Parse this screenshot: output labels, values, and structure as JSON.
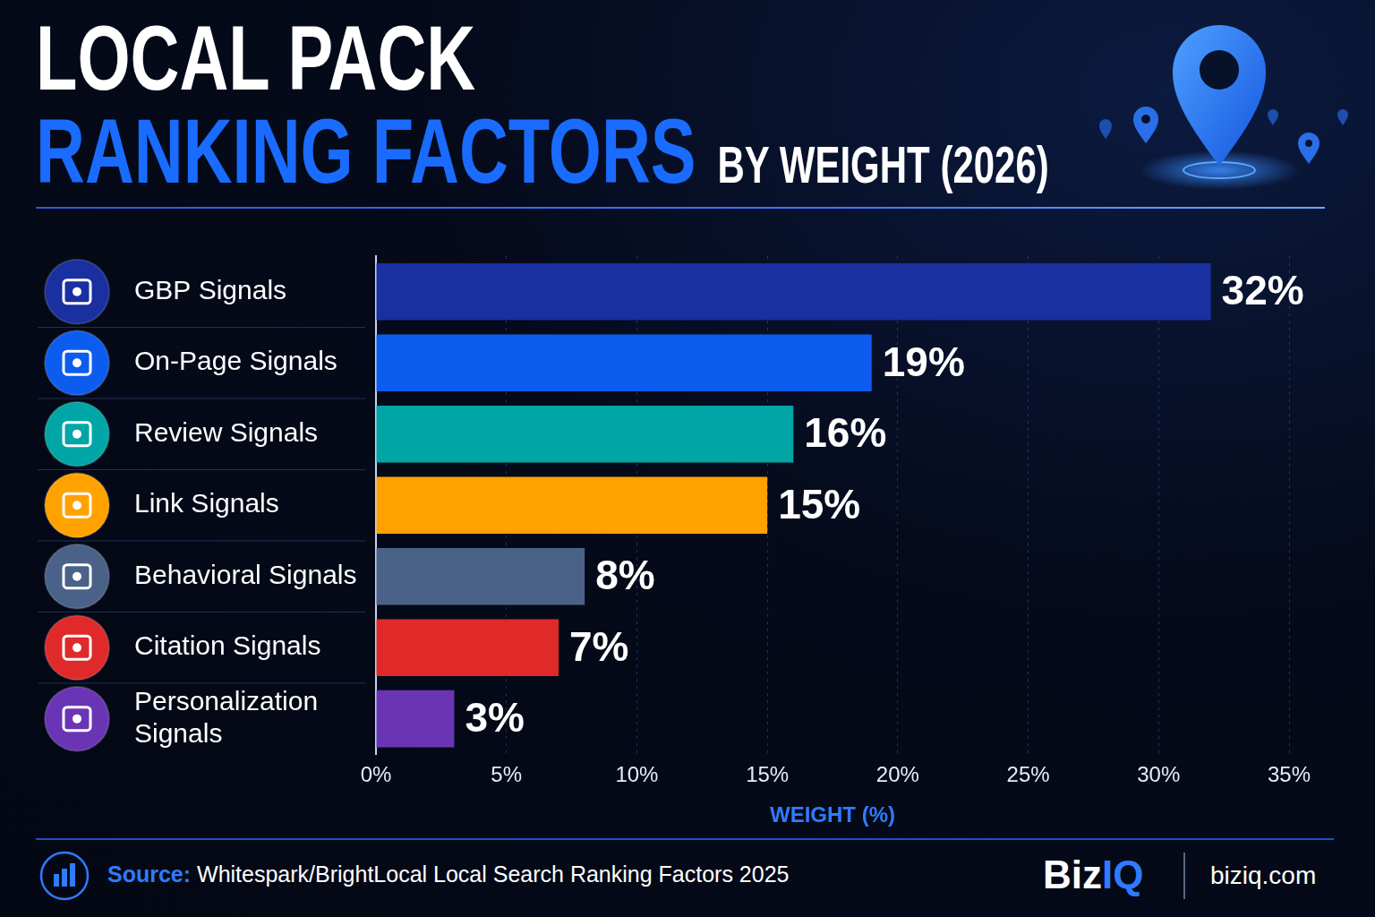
{
  "chart_data": {
    "type": "bar",
    "title": [
      "LOCAL PACK",
      "RANKING FACTORS"
    ],
    "subtitle": "BY WEIGHT (2026)",
    "orientation": "horizontal",
    "categories": [
      "GBP Signals",
      "On-Page Signals",
      "Review Signals",
      "Link Signals",
      "Behavioral Signals",
      "Citation Signals",
      "Personalization Signals"
    ],
    "values": [
      32,
      19,
      16,
      15,
      8,
      7,
      3
    ],
    "value_labels": [
      "32%",
      "19%",
      "16%",
      "15%",
      "8%",
      "7%",
      "3%"
    ],
    "colors": [
      "#1a2fa0",
      "#0d5cf0",
      "#00a6a6",
      "#ffa200",
      "#4a6288",
      "#e02a2a",
      "#6a35b5"
    ],
    "xlabel": "WEIGHT (%)",
    "xlim": [
      0,
      35
    ],
    "xticks": [
      {
        "value": 0,
        "label": "0%"
      },
      {
        "value": 5,
        "label": "5%"
      },
      {
        "value": 10,
        "label": "10%"
      },
      {
        "value": 15,
        "label": "15%"
      },
      {
        "value": 20,
        "label": "20%"
      },
      {
        "value": 25,
        "label": "25%"
      },
      {
        "value": 30,
        "label": "30%"
      },
      {
        "value": 35,
        "label": "35%"
      }
    ],
    "grid": true,
    "data_labels": true,
    "source": "Source: Whitespark/BrightLocal Local Search Ranking Factors 2025",
    "annotations": [
      "BizIQ",
      "biziq.com"
    ]
  }
}
